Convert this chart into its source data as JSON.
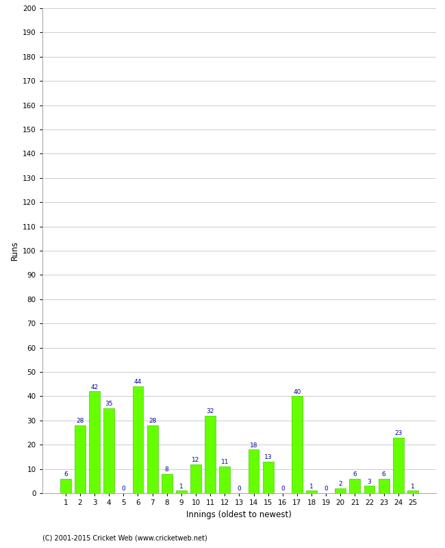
{
  "xlabel": "Innings (oldest to newest)",
  "ylabel": "Runs",
  "values": [
    6,
    28,
    42,
    35,
    0,
    44,
    28,
    8,
    1,
    12,
    32,
    11,
    0,
    18,
    13,
    0,
    40,
    1,
    0,
    2,
    6,
    3,
    6,
    23,
    1
  ],
  "labels": [
    "1",
    "2",
    "3",
    "4",
    "5",
    "6",
    "7",
    "8",
    "9",
    "10",
    "11",
    "12",
    "13",
    "14",
    "15",
    "16",
    "17",
    "18",
    "19",
    "20",
    "21",
    "22",
    "23",
    "24",
    "25"
  ],
  "bar_color": "#66ff00",
  "bar_edge_color": "#44cc00",
  "value_color": "#000099",
  "ylim": [
    0,
    200
  ],
  "yticks": [
    0,
    10,
    20,
    30,
    40,
    50,
    60,
    70,
    80,
    90,
    100,
    110,
    120,
    130,
    140,
    150,
    160,
    170,
    180,
    190,
    200
  ],
  "bg_color": "#ffffff",
  "grid_color": "#cccccc",
  "footer": "(C) 2001-2015 Cricket Web (www.cricketweb.net)",
  "value_fontsize": 6.5,
  "axis_fontsize": 7.5,
  "label_fontsize": 8.5
}
